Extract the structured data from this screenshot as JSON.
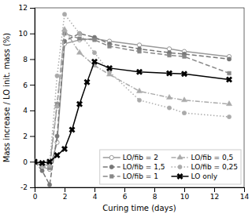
{
  "chart_data": {
    "type": "line",
    "xlabel": "Curing time (days)",
    "ylabel": "Mass increase / LO init. mass (%)",
    "xlim": [
      0,
      14
    ],
    "ylim": [
      -2,
      12
    ],
    "xticks": [
      0,
      2,
      4,
      6,
      8,
      10,
      12,
      14
    ],
    "yticks": [
      -2,
      0,
      2,
      4,
      6,
      8,
      10,
      12
    ],
    "grid": false,
    "legend": "lower right",
    "series": [
      {
        "name": "LO/fib = 2",
        "color": "#999999",
        "marker": "circle-open",
        "line_style": "solid",
        "x": [
          0,
          0.5,
          1,
          1.5,
          2,
          3,
          4,
          5,
          7,
          9,
          10,
          13
        ],
        "values": [
          0,
          -0.4,
          -0.6,
          1.5,
          9.2,
          9.5,
          9.6,
          9.4,
          9.1,
          8.8,
          8.6,
          8.2
        ]
      },
      {
        "name": "LO/fib = 1,5",
        "color": "#777777",
        "marker": "circle",
        "line_style": "dashed",
        "x": [
          0,
          0.5,
          1,
          1.5,
          2,
          3,
          4,
          5,
          7,
          9,
          10,
          13
        ],
        "values": [
          0,
          -0.7,
          -1.8,
          2.0,
          9.4,
          10.0,
          9.7,
          9.2,
          8.8,
          8.5,
          8.4,
          8.0
        ]
      },
      {
        "name": "LO/fib = 1",
        "color": "#888888",
        "marker": "square",
        "line_style": "dashed",
        "x": [
          0,
          0.5,
          1,
          1.5,
          2,
          3,
          4,
          5,
          7,
          9,
          10,
          13
        ],
        "values": [
          0,
          -0.3,
          -0.5,
          4.5,
          10.0,
          9.6,
          9.5,
          9.0,
          8.6,
          8.3,
          8.2,
          6.9
        ]
      },
      {
        "name": "LO/fib = 0,5",
        "color": "#aaaaaa",
        "marker": "triangle",
        "line_style": "dashdot",
        "x": [
          0,
          0.5,
          1,
          1.5,
          2,
          3,
          4,
          5,
          7,
          9,
          10,
          13
        ],
        "values": [
          0,
          -0.3,
          -0.2,
          4.3,
          10.3,
          8.5,
          7.5,
          6.8,
          5.5,
          5.0,
          4.8,
          4.5
        ]
      },
      {
        "name": "LO/fib = 0,25",
        "color": "#aaaaaa",
        "marker": "circle",
        "line_style": "dotted",
        "x": [
          0,
          0.5,
          1,
          1.5,
          2,
          3,
          4,
          5,
          7,
          9,
          10,
          13
        ],
        "values": [
          0,
          -0.3,
          -0.3,
          6.7,
          11.5,
          10.0,
          8.5,
          7.0,
          4.8,
          4.2,
          3.8,
          3.5
        ]
      },
      {
        "name": "LO only",
        "color": "#000000",
        "marker": "x",
        "line_style": "solid",
        "x": [
          0,
          0.5,
          1,
          1.5,
          2,
          2.5,
          3,
          3.5,
          4,
          5,
          7,
          9,
          10,
          13
        ],
        "values": [
          0,
          -0.1,
          0.0,
          0.5,
          1.0,
          2.5,
          4.5,
          6.2,
          7.8,
          7.3,
          7.0,
          6.9,
          6.85,
          6.4
        ]
      }
    ]
  }
}
